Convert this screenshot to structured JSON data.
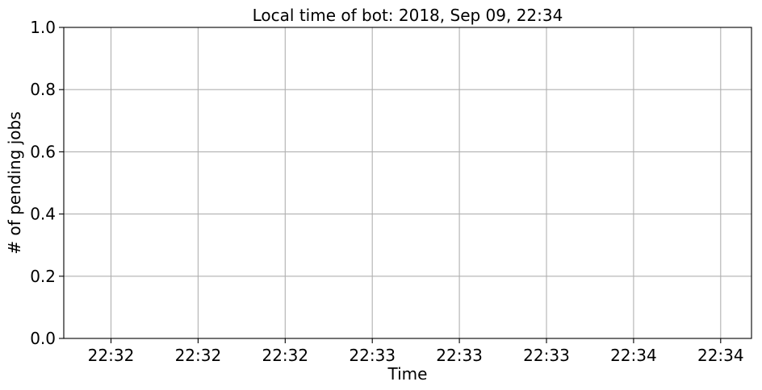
{
  "chart_data": {
    "type": "line",
    "title": "Local time of bot: 2018, Sep 09, 22:34",
    "xlabel": "Time",
    "ylabel": "# of pending jobs",
    "x_tick_labels": [
      "22:32",
      "22:32",
      "22:32",
      "22:33",
      "22:33",
      "22:33",
      "22:34",
      "22:34"
    ],
    "y_tick_labels": [
      "0.0",
      "0.2",
      "0.4",
      "0.6",
      "0.8",
      "1.0"
    ],
    "y_ticks": [
      0.0,
      0.2,
      0.4,
      0.6,
      0.8,
      1.0
    ],
    "ylim": [
      0,
      1
    ],
    "grid": true,
    "series": []
  }
}
